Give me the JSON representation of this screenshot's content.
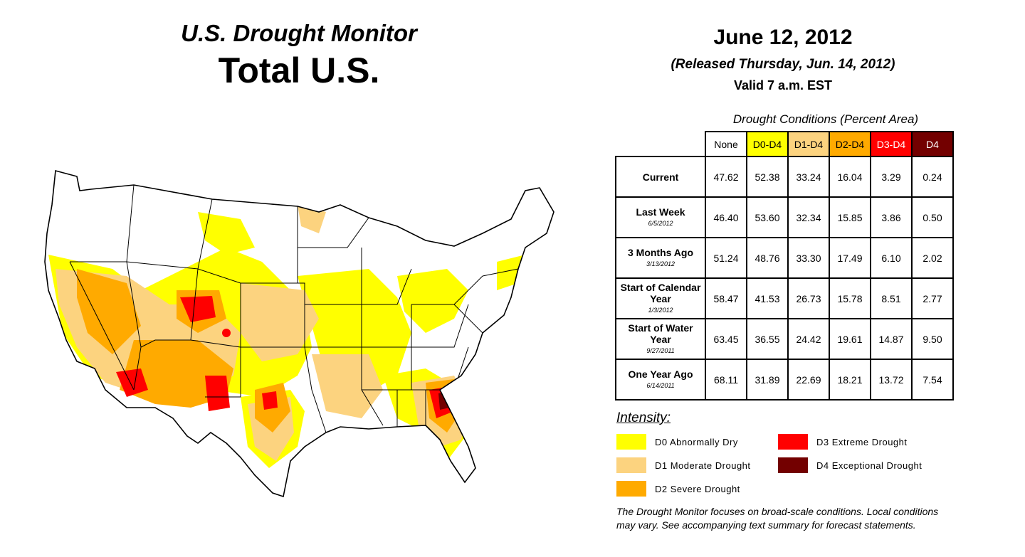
{
  "header": {
    "monitor_title": "U.S. Drought Monitor",
    "region_title": "Total U.S.",
    "date": "June 12, 2012",
    "released": "(Released Thursday, Jun. 14, 2012)",
    "valid": "Valid 7 a.m. EST"
  },
  "table": {
    "caption": "Drought Conditions (Percent Area)",
    "columns": [
      "None",
      "D0-D4",
      "D1-D4",
      "D2-D4",
      "D3-D4",
      "D4"
    ],
    "rows": [
      {
        "label": "Current",
        "sub": "",
        "values": [
          "47.62",
          "52.38",
          "33.24",
          "16.04",
          "3.29",
          "0.24"
        ]
      },
      {
        "label": "Last Week",
        "sub": "6/5/2012",
        "values": [
          "46.40",
          "53.60",
          "32.34",
          "15.85",
          "3.86",
          "0.50"
        ]
      },
      {
        "label": "3 Months Ago",
        "sub": "3/13/2012",
        "values": [
          "51.24",
          "48.76",
          "33.30",
          "17.49",
          "6.10",
          "2.02"
        ]
      },
      {
        "label": "Start of Calendar Year",
        "sub": "1/3/2012",
        "values": [
          "58.47",
          "41.53",
          "26.73",
          "15.78",
          "8.51",
          "2.77"
        ]
      },
      {
        "label": "Start of Water Year",
        "sub": "9/27/2011",
        "values": [
          "63.45",
          "36.55",
          "24.42",
          "19.61",
          "14.87",
          "9.50"
        ]
      },
      {
        "label": "One Year Ago",
        "sub": "6/14/2011",
        "values": [
          "68.11",
          "31.89",
          "22.69",
          "18.21",
          "13.72",
          "7.54"
        ]
      }
    ]
  },
  "legend": {
    "heading": "Intensity:",
    "items": [
      {
        "label": "D0 Abnormally Dry",
        "color": "#ffff00"
      },
      {
        "label": "D1 Moderate Drought",
        "color": "#fcd37f"
      },
      {
        "label": "D2 Severe Drought",
        "color": "#ffaa00"
      },
      {
        "label": "D3 Extreme Drought",
        "color": "#ff0000"
      },
      {
        "label": "D4 Exceptional Drought",
        "color": "#730000"
      }
    ]
  },
  "note": "The Drought Monitor focuses on broad-scale conditions. Local conditions may vary. See accompanying text summary for forecast statements."
}
